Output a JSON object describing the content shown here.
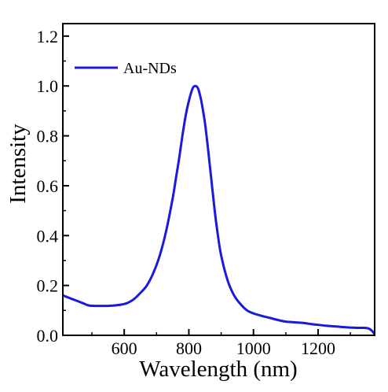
{
  "chart_data": {
    "type": "line",
    "xlabel": "Wavelength (nm)",
    "ylabel": "Intensity",
    "xlim": [
      410,
      1375
    ],
    "ylim": [
      0.0,
      1.25
    ],
    "x_ticks": [
      600,
      800,
      1000,
      1200
    ],
    "x_tick_labels": [
      "600",
      "800",
      "1000",
      "1200"
    ],
    "y_ticks": [
      0.0,
      0.2,
      0.4,
      0.6,
      0.8,
      1.0,
      1.2
    ],
    "y_tick_labels": [
      "0.0",
      "0.2",
      "0.4",
      "0.6",
      "0.8",
      "1.0",
      "1.2"
    ],
    "grid": false,
    "legend_position": "top-left",
    "series": [
      {
        "name": "Au-NDs",
        "color": "#1a1adc",
        "x": [
          410,
          430,
          450,
          470,
          490,
          510,
          530,
          550,
          570,
          590,
          610,
          630,
          650,
          670,
          690,
          710,
          730,
          750,
          760,
          770,
          780,
          790,
          800,
          810,
          815,
          820,
          825,
          830,
          835,
          840,
          850,
          860,
          870,
          880,
          890,
          900,
          920,
          940,
          960,
          980,
          1000,
          1020,
          1050,
          1080,
          1100,
          1120,
          1150,
          1180,
          1200,
          1230,
          1260,
          1290,
          1320,
          1340,
          1355,
          1365,
          1375
        ],
        "values": [
          0.16,
          0.15,
          0.14,
          0.13,
          0.12,
          0.118,
          0.118,
          0.118,
          0.12,
          0.123,
          0.13,
          0.145,
          0.17,
          0.2,
          0.25,
          0.32,
          0.42,
          0.55,
          0.63,
          0.71,
          0.8,
          0.88,
          0.94,
          0.985,
          0.997,
          1.0,
          0.997,
          0.985,
          0.96,
          0.93,
          0.85,
          0.74,
          0.62,
          0.5,
          0.4,
          0.32,
          0.22,
          0.16,
          0.125,
          0.1,
          0.088,
          0.08,
          0.07,
          0.06,
          0.055,
          0.053,
          0.05,
          0.045,
          0.042,
          0.038,
          0.035,
          0.032,
          0.03,
          0.03,
          0.028,
          0.02,
          0.005
        ]
      }
    ]
  }
}
